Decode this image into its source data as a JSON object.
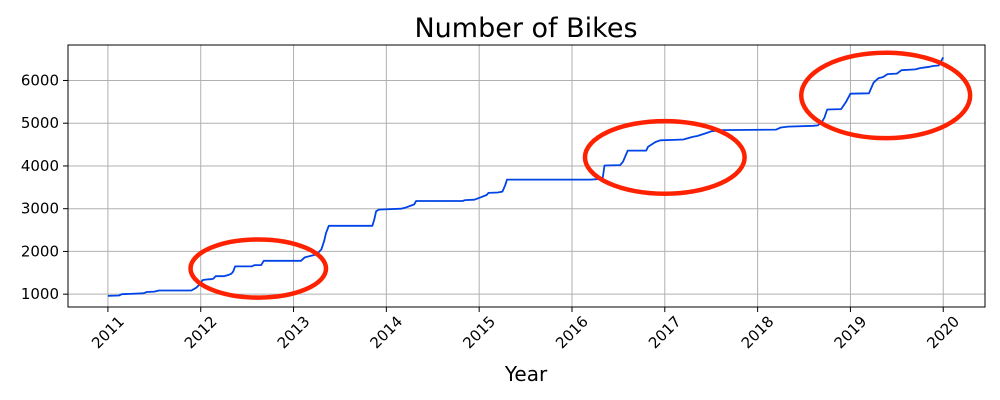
{
  "chart_data": {
    "type": "line",
    "title": "Number of Bikes",
    "xlabel": "Year",
    "ylabel": "",
    "xlim": [
      2010.57,
      2020.45
    ],
    "ylim": [
      700,
      6830
    ],
    "x_ticks": [
      2011,
      2012,
      2013,
      2014,
      2015,
      2016,
      2017,
      2018,
      2019,
      2020
    ],
    "x_tick_labels": [
      "2011",
      "2012",
      "2013",
      "2014",
      "2015",
      "2016",
      "2017",
      "2018",
      "2019",
      "2020"
    ],
    "y_ticks": [
      1000,
      2000,
      3000,
      4000,
      5000,
      6000
    ],
    "y_tick_labels": [
      "1000",
      "2000",
      "3000",
      "4000",
      "5000",
      "6000"
    ],
    "grid": true,
    "series": [
      {
        "color": "#0043e6",
        "x": [
          2011.0,
          2011.12,
          2011.15,
          2011.38,
          2011.42,
          2011.5,
          2011.55,
          2011.9,
          2011.95,
          2011.99,
          2012.02,
          2012.05,
          2012.1,
          2012.12,
          2012.14,
          2012.16,
          2012.25,
          2012.3,
          2012.33,
          2012.35,
          2012.37,
          2012.55,
          2012.58,
          2012.65,
          2012.68,
          2013.08,
          2013.12,
          2013.25,
          2013.3,
          2013.33,
          2013.35,
          2013.38,
          2013.85,
          2013.87,
          2013.89,
          2013.92,
          2014.16,
          2014.2,
          2014.25,
          2014.3,
          2014.32,
          2014.82,
          2014.85,
          2014.95,
          2015.02,
          2015.08,
          2015.1,
          2015.2,
          2015.25,
          2015.28,
          2015.3,
          2016.0,
          2016.2,
          2016.33,
          2016.35,
          2016.52,
          2016.55,
          2016.6,
          2016.8,
          2016.82,
          2016.9,
          2016.95,
          2017.1,
          2017.2,
          2017.3,
          2017.35,
          2017.45,
          2017.5,
          2017.6,
          2018.2,
          2018.25,
          2018.33,
          2018.6,
          2018.65,
          2018.7,
          2018.72,
          2018.75,
          2018.9,
          2018.95,
          2019.0,
          2019.2,
          2019.22,
          2019.25,
          2019.3,
          2019.35,
          2019.4,
          2019.5,
          2019.55,
          2019.7,
          2019.75,
          2019.85,
          2019.9,
          2019.95,
          2020.0
        ],
        "y": [
          960,
          970,
          1000,
          1020,
          1050,
          1060,
          1085,
          1085,
          1150,
          1230,
          1330,
          1340,
          1350,
          1350,
          1370,
          1420,
          1420,
          1450,
          1480,
          1530,
          1650,
          1650,
          1680,
          1680,
          1780,
          1780,
          1860,
          1930,
          2050,
          2250,
          2430,
          2600,
          2600,
          2750,
          2940,
          2980,
          3000,
          3020,
          3060,
          3100,
          3180,
          3180,
          3200,
          3210,
          3270,
          3320,
          3370,
          3380,
          3400,
          3550,
          3680,
          3680,
          3680,
          3700,
          4010,
          4020,
          4100,
          4360,
          4360,
          4450,
          4560,
          4600,
          4610,
          4620,
          4680,
          4700,
          4770,
          4810,
          4840,
          4850,
          4900,
          4920,
          4940,
          4950,
          5060,
          5130,
          5320,
          5330,
          5490,
          5690,
          5700,
          5800,
          5950,
          6050,
          6080,
          6150,
          6160,
          6240,
          6260,
          6290,
          6320,
          6340,
          6350,
          6540
        ]
      }
    ],
    "annotations": [
      {
        "type": "ellipse",
        "color": "#ff2200",
        "cx": 2012.62,
        "cy": 1600,
        "rx_years": 0.73,
        "ry_value": 680
      },
      {
        "type": "ellipse",
        "color": "#ff2200",
        "cx": 2017.0,
        "cy": 4200,
        "rx_years": 0.86,
        "ry_value": 850
      },
      {
        "type": "ellipse",
        "color": "#ff2200",
        "cx": 2019.38,
        "cy": 5650,
        "rx_years": 0.91,
        "ry_value": 1000
      }
    ]
  }
}
